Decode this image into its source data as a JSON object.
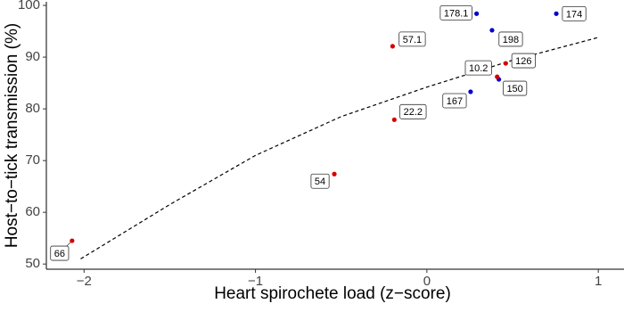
{
  "chart_data": {
    "type": "scatter",
    "xlabel": "Heart spirochete load (z−score)",
    "ylabel": "Host−to−tick transmission (%)",
    "xlim": [
      -2.22,
      1.15
    ],
    "ylim": [
      49,
      100.7
    ],
    "xticks": [
      {
        "value": -2,
        "label": "−2"
      },
      {
        "value": -1,
        "label": "−1"
      },
      0,
      1
    ],
    "yticks": [
      50,
      60,
      70,
      80,
      90,
      100
    ],
    "points": {
      "x": [
        -2.07,
        -0.54,
        -0.19,
        -0.2,
        0.255,
        0.42,
        0.41,
        0.46,
        0.38,
        0.29,
        0.755
      ],
      "values": [
        54.5,
        67.4,
        77.9,
        92.1,
        83.3,
        85.7,
        86.2,
        88.8,
        95.2,
        98.4,
        98.4
      ],
      "colors": [
        "#d40000",
        "#d40000",
        "#d40000",
        "#d40000",
        "#0000cc",
        "#0000cc",
        "#d40000",
        "#d40000",
        "#0000cc",
        "#0000cc",
        "#0000cc"
      ],
      "labels": [
        "66",
        "54",
        "22.2",
        "57.1",
        "167",
        "150",
        "10.2",
        "126",
        "198",
        "178.1",
        "174"
      ]
    },
    "fit": {
      "x": [
        -2.02,
        -1.5,
        -1,
        -0.5,
        0,
        0.5,
        1
      ],
      "values": [
        51,
        61.5,
        71,
        78.5,
        84.2,
        89.4,
        93.8
      ]
    }
  }
}
